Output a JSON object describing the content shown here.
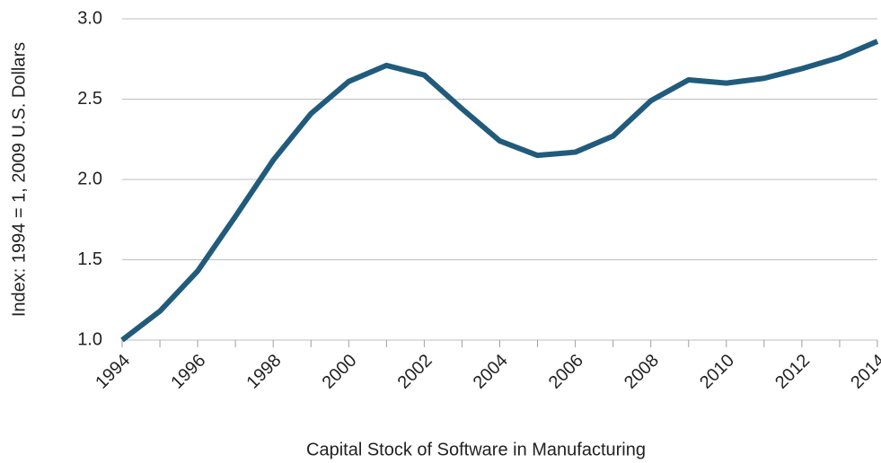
{
  "chart_data": {
    "type": "line",
    "xlabel": "Capital Stock of Software in Manufacturing",
    "ylabel": "Index: 1994 = 1, 2009 U.S. Dollars",
    "x": [
      1994,
      1995,
      1996,
      1997,
      1998,
      1999,
      2000,
      2001,
      2002,
      2003,
      2004,
      2005,
      2006,
      2007,
      2008,
      2009,
      2010,
      2011,
      2012,
      2013,
      2014
    ],
    "series": [
      {
        "name": "Capital Stock of Software in Manufacturing",
        "color": "#215b7c",
        "values": [
          1.0,
          1.18,
          1.43,
          1.77,
          2.12,
          2.41,
          2.61,
          2.71,
          2.65,
          2.44,
          2.24,
          2.15,
          2.17,
          2.27,
          2.49,
          2.62,
          2.6,
          2.63,
          2.69,
          2.76,
          2.86
        ]
      }
    ],
    "xlim": [
      1994,
      2014
    ],
    "xticks": [
      1994,
      1996,
      1998,
      2000,
      2002,
      2004,
      2006,
      2008,
      2010,
      2012,
      2014
    ],
    "ylim": [
      1.0,
      3.0
    ],
    "yticks": [
      {
        "value": 1.0,
        "label": "1.0"
      },
      {
        "value": 1.5,
        "label": "1.5"
      },
      {
        "value": 2.0,
        "label": "2.0"
      },
      {
        "value": 2.5,
        "label": "2.5"
      },
      {
        "value": 3.0,
        "label": "3.0"
      }
    ],
    "grid": true
  }
}
